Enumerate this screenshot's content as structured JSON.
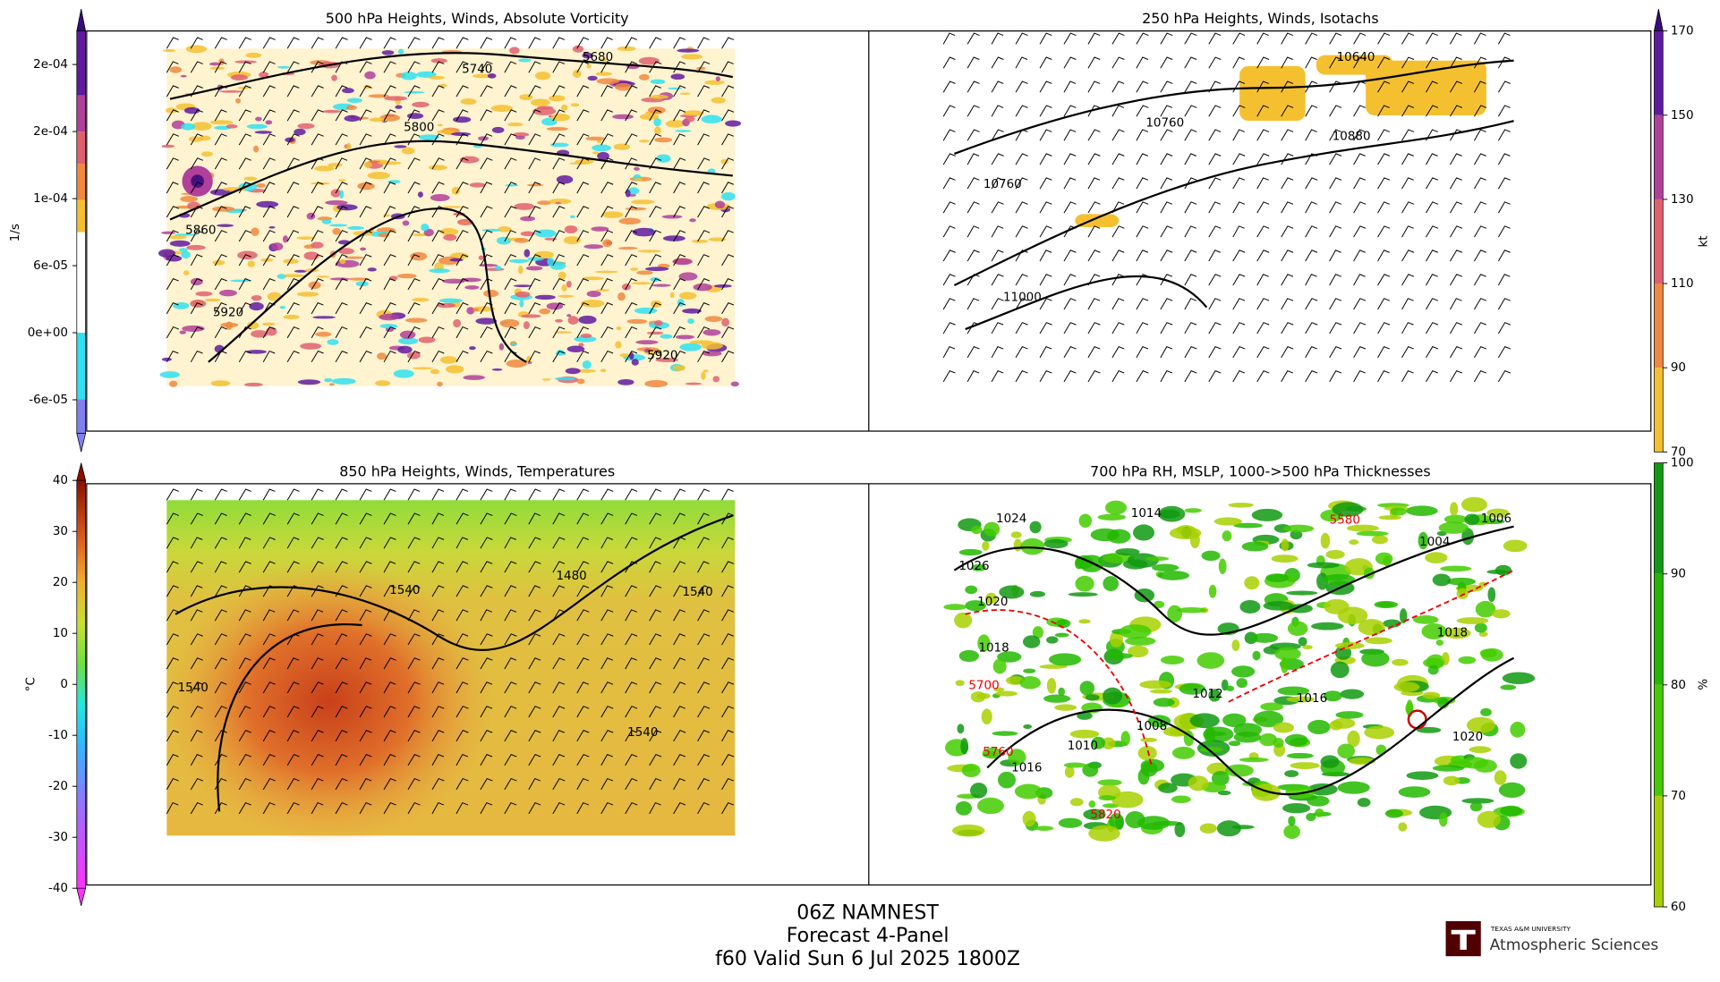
{
  "panels": [
    {
      "title": "500 hPa Heights, Winds, Absolute Vorticity",
      "contour_labels": [
        "5740",
        "5680",
        "5800",
        "5860",
        "5920",
        "5920"
      ]
    },
    {
      "title": "250 hPa Heights, Winds, Isotachs",
      "contour_labels": [
        "10640",
        "10760",
        "10880",
        "10760",
        "11000"
      ]
    },
    {
      "title": "850 hPa Heights, Winds, Temperatures",
      "contour_labels": [
        "1540",
        "1480",
        "1540",
        "1540",
        "1540"
      ]
    },
    {
      "title": "700 hPa RH, MSLP, 1000->500 hPa Thicknesses",
      "contour_labels": [
        "1024",
        "1026",
        "1020",
        "1018",
        "1016",
        "1014",
        "1012",
        "1010",
        "1008",
        "1004",
        "1006",
        "5700",
        "5760",
        "5820",
        "5580",
        "1016",
        "1020",
        "1018"
      ]
    }
  ],
  "colorbars": [
    {
      "label": "1/s",
      "lim": [
        -9e-05,
        0.00027
      ],
      "ticks": [
        {
          "value": 0.00024,
          "label": "2e-04"
        },
        {
          "value": 0.00018,
          "label": "2e-04"
        },
        {
          "value": 0.00012,
          "label": "1e-04"
        },
        {
          "value": 6e-05,
          "label": "6e-05"
        },
        {
          "value": 0,
          "label": "0e+00"
        },
        {
          "value": -6e-05,
          "label": "-6e-05"
        }
      ]
    },
    {
      "label": "kt",
      "lim": [
        70,
        170
      ],
      "ticks": [
        70,
        90,
        110,
        130,
        150,
        170
      ]
    },
    {
      "label": "°C",
      "lim": [
        -40,
        40
      ],
      "ticks": [
        -40,
        -30,
        -20,
        -10,
        0,
        10,
        20,
        30,
        40
      ]
    },
    {
      "label": "%",
      "lim": [
        60,
        100
      ],
      "ticks": [
        60,
        70,
        80,
        90,
        100
      ]
    }
  ],
  "footer": {
    "lines": [
      "06Z NAMNEST",
      "Forecast 4-Panel",
      "f60 Valid Sun 6 Jul 2025 1800Z"
    ]
  },
  "logo": {
    "university": "TEXAS A&M UNIVERSITY",
    "department": "Atmospheric Sciences"
  }
}
